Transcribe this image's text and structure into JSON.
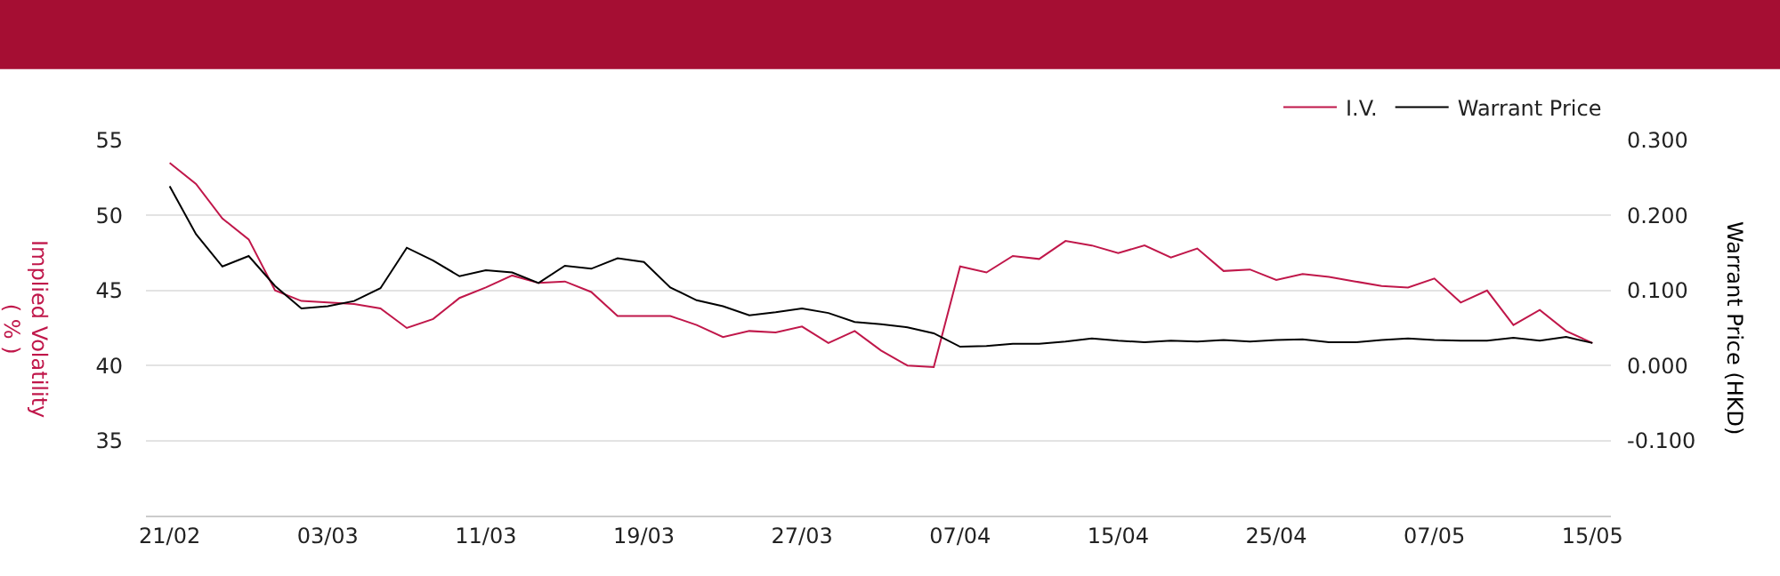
{
  "chart_data": {
    "type": "line",
    "categories": [
      "21/02",
      null,
      null,
      null,
      null,
      null,
      "03/03",
      null,
      null,
      null,
      null,
      null,
      "11/03",
      null,
      null,
      null,
      null,
      null,
      "19/03",
      null,
      null,
      null,
      null,
      null,
      "27/03",
      null,
      null,
      null,
      null,
      null,
      "07/04",
      null,
      null,
      null,
      null,
      null,
      "15/04",
      null,
      null,
      null,
      null,
      null,
      "25/04",
      null,
      null,
      null,
      null,
      null,
      "07/05",
      null,
      null,
      null,
      null,
      null,
      "15/05"
    ],
    "series": [
      {
        "name": "I.V.",
        "color": "#c0174a",
        "axis": "y",
        "values": [
          53.5,
          52.1,
          49.8,
          48.4,
          45.0,
          44.3,
          44.2,
          44.1,
          43.8,
          42.5,
          43.1,
          44.5,
          45.2,
          46.0,
          45.5,
          45.6,
          44.9,
          43.3,
          43.3,
          43.3,
          42.7,
          41.9,
          42.3,
          42.2,
          42.6,
          41.5,
          42.3,
          41.0,
          40.0,
          39.9,
          46.6,
          46.2,
          47.3,
          47.1,
          48.3,
          48.0,
          47.5,
          48.0,
          47.2,
          47.8,
          46.3,
          46.4,
          45.7,
          46.1,
          45.9,
          45.6,
          45.3,
          45.2,
          45.8,
          44.2,
          45.0,
          42.7,
          43.7,
          42.3,
          41.5
        ]
      },
      {
        "name": "Warrant Price",
        "color": "#000000",
        "axis": "y2",
        "values": [
          0.239,
          0.175,
          0.132,
          0.146,
          0.106,
          0.076,
          0.079,
          0.086,
          0.103,
          0.157,
          0.14,
          0.119,
          0.127,
          0.124,
          0.11,
          0.133,
          0.129,
          0.143,
          0.138,
          0.104,
          0.087,
          0.079,
          0.067,
          0.071,
          0.076,
          0.07,
          0.058,
          0.055,
          0.051,
          0.043,
          0.025,
          0.026,
          0.029,
          0.029,
          0.032,
          0.036,
          0.033,
          0.031,
          0.033,
          0.032,
          0.034,
          0.032,
          0.034,
          0.035,
          0.031,
          0.031,
          0.034,
          0.036,
          0.034,
          0.033,
          0.033,
          0.037,
          0.033,
          0.038,
          0.03
        ]
      }
    ],
    "ylabel": "Implied Volatility\n( % )",
    "y2label": "Warrant Price (HKD)",
    "ylim": [
      30,
      55
    ],
    "yticks": [
      35,
      40,
      45,
      50,
      55
    ],
    "y2lim": [
      -0.2,
      0.3
    ],
    "y2ticks": [
      {
        "value": -0.1,
        "label": "-0.100"
      },
      {
        "value": 0,
        "label": "0.000"
      },
      {
        "value": 0.1,
        "label": "0.100"
      },
      {
        "value": 0.2,
        "label": "0.200"
      },
      {
        "value": 0.3,
        "label": "0.300"
      }
    ],
    "grid": "y",
    "legend": "top right",
    "marker": "none",
    "line_style": "solid"
  }
}
